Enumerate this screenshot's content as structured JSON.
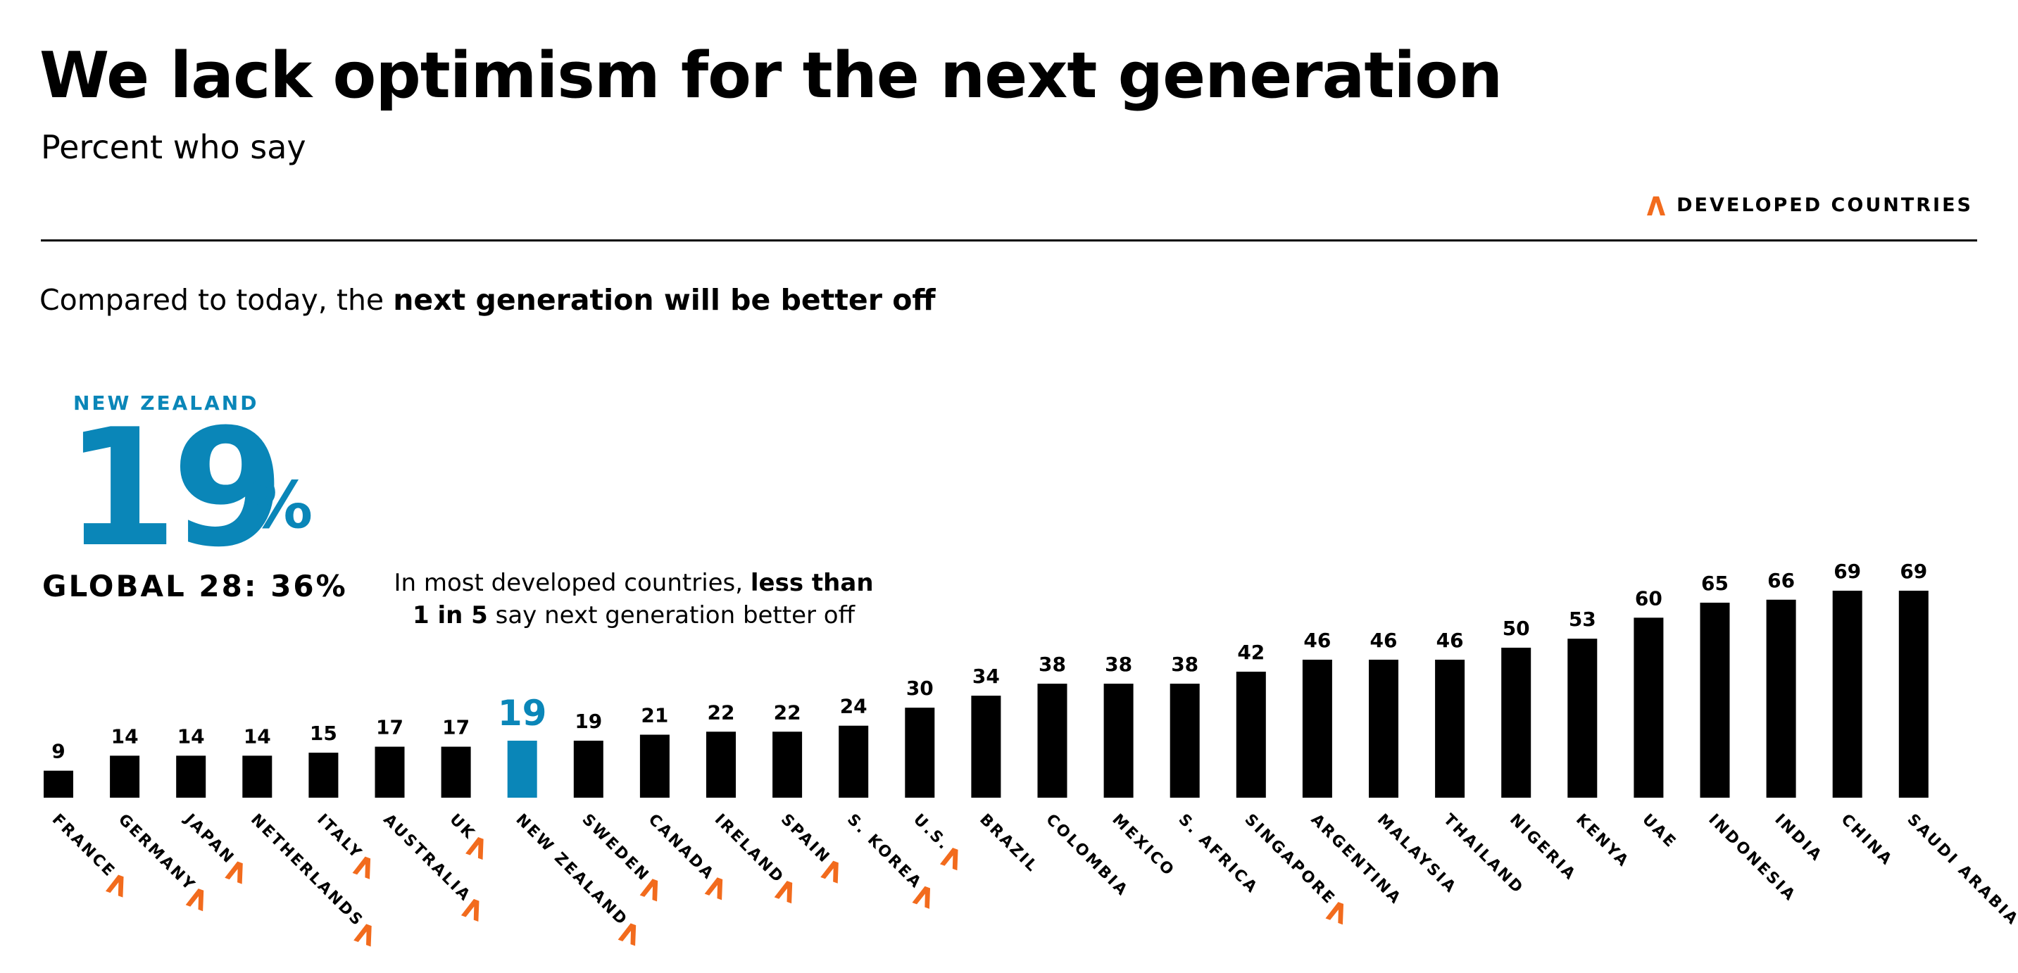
{
  "title": "We lack optimism for the next generation",
  "subtitle": "Percent who say",
  "legend": {
    "label": "DEVELOPED COUNTRIES",
    "marker_color": "#f26b1d"
  },
  "question": {
    "prefix": "Compared to today, the ",
    "bold": "next generation will be better off"
  },
  "highlight": {
    "country": "NEW ZEALAND",
    "value": "19",
    "unit": "%",
    "global_label": "GLOBAL 28: 36%",
    "color": "#0a86b8"
  },
  "annotation": {
    "line1_prefix": "In most developed countries, ",
    "line1_bold": "less than",
    "line2_bold": "1 in 5",
    "line2_rest": " say next generation better off"
  },
  "chart_data": {
    "type": "bar",
    "title": "We lack optimism for the next generation",
    "categories": [
      "FRANCE",
      "GERMANY",
      "JAPAN",
      "NETHERLANDS",
      "ITALY",
      "AUSTRALIA",
      "UK",
      "NEW ZEALAND",
      "SWEDEN",
      "CANADA",
      "IRELAND",
      "SPAIN",
      "S. KOREA",
      "U.S.",
      "BRAZIL",
      "COLOMBIA",
      "MEXICO",
      "S. AFRICA",
      "SINGAPORE",
      "ARGENTINA",
      "MALAYSIA",
      "THAILAND",
      "NIGERIA",
      "KENYA",
      "UAE",
      "INDONESIA",
      "INDIA",
      "CHINA",
      "SAUDI ARABIA"
    ],
    "values": [
      9,
      14,
      14,
      14,
      15,
      17,
      17,
      19,
      19,
      21,
      22,
      22,
      24,
      30,
      34,
      38,
      38,
      38,
      42,
      46,
      46,
      46,
      50,
      53,
      60,
      65,
      66,
      69,
      69
    ],
    "developed": [
      true,
      true,
      true,
      true,
      true,
      true,
      true,
      true,
      true,
      true,
      true,
      true,
      true,
      true,
      false,
      false,
      false,
      false,
      true,
      false,
      false,
      false,
      false,
      false,
      false,
      false,
      false,
      false,
      false
    ],
    "highlighted": "NEW ZEALAND",
    "ylim": [
      0,
      69
    ],
    "bar_color": "#000000",
    "highlight_color": "#0a86b8",
    "developed_marker_color": "#f26b1d"
  }
}
